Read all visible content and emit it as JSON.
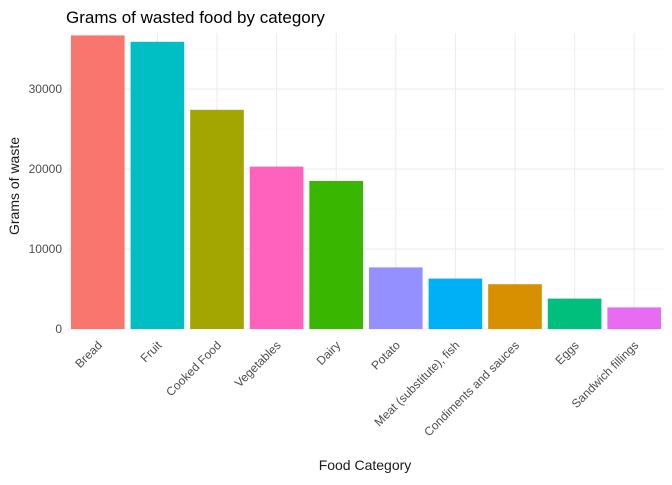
{
  "chart_data": {
    "type": "bar",
    "title": "Grams of wasted food by category",
    "xlabel": "Food Category",
    "ylabel": "Grams of waste",
    "categories": [
      "Bread",
      "Fruit",
      "Cooked Food",
      "Vegetables",
      "Dairy",
      "Potato",
      "Meat (substitute), fish",
      "Condiments and sauces",
      "Eggs",
      "Sandwich fillings"
    ],
    "values": [
      36700,
      35900,
      27400,
      20300,
      18500,
      7700,
      6300,
      5600,
      3800,
      2700
    ],
    "colors": [
      "#F8766D",
      "#00BFC4",
      "#A3A500",
      "#FF62BC",
      "#39B600",
      "#9590FF",
      "#00B0F6",
      "#D89000",
      "#00BF7D",
      "#E76BF3"
    ],
    "yticks": [
      0,
      10000,
      20000,
      30000
    ],
    "ylim": [
      0,
      37000
    ],
    "grid": true,
    "legend": "none"
  }
}
